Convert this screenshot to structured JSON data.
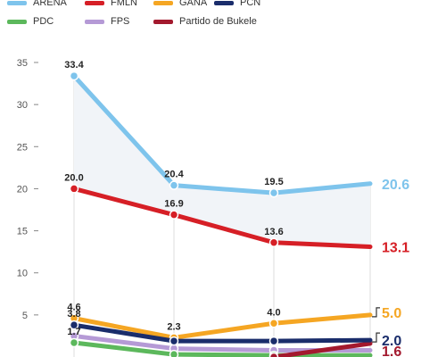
{
  "chart_data": {
    "type": "line",
    "title": "",
    "xlabel": "",
    "ylabel": "",
    "categories": [
      "",
      "",
      "",
      ""
    ],
    "ylim": [
      0,
      35
    ],
    "yticks": [
      "35",
      "30",
      "25",
      "20",
      "15",
      "10",
      "5"
    ],
    "ytick_values": [
      35,
      30,
      25,
      20,
      15,
      10,
      5
    ],
    "grid": "vertical",
    "legend": "top",
    "series": [
      {
        "name": "ARENA",
        "color": "#7ec4ec",
        "values": [
          33.4,
          20.4,
          19.5,
          20.6
        ],
        "labels": [
          "33.4",
          "20.4",
          "19.5",
          "20.6"
        ]
      },
      {
        "name": "FMLN",
        "color": "#d61f26",
        "values": [
          20.0,
          16.9,
          13.6,
          13.1
        ],
        "labels": [
          "20.0",
          "16.9",
          "13.6",
          "13.1"
        ]
      },
      {
        "name": "GANA",
        "color": "#f5a623",
        "values": [
          4.6,
          2.3,
          4.0,
          5.0
        ],
        "labels": [
          "4.6",
          "2.3",
          "4.0",
          "5.0"
        ]
      },
      {
        "name": "PCN",
        "color": "#1a2d6b",
        "values": [
          3.8,
          1.9,
          1.9,
          2.0
        ],
        "labels": [
          "3.8",
          "",
          "",
          "2.0"
        ]
      },
      {
        "name": "PDC",
        "color": "#5cb85c",
        "values": [
          1.7,
          0.3,
          0.2,
          0.2
        ],
        "labels": [
          "1.7",
          "",
          "",
          ""
        ]
      },
      {
        "name": "FPS",
        "color": "#b59ad6",
        "values": [
          2.5,
          1.0,
          0.8,
          0.8
        ],
        "labels": [
          "",
          "",
          "",
          ""
        ]
      },
      {
        "name": "Partido de Bukele",
        "color": "#a3192e",
        "values": [
          null,
          null,
          0.0,
          1.6
        ],
        "labels": [
          "",
          "",
          "",
          "1.6"
        ]
      }
    ]
  }
}
